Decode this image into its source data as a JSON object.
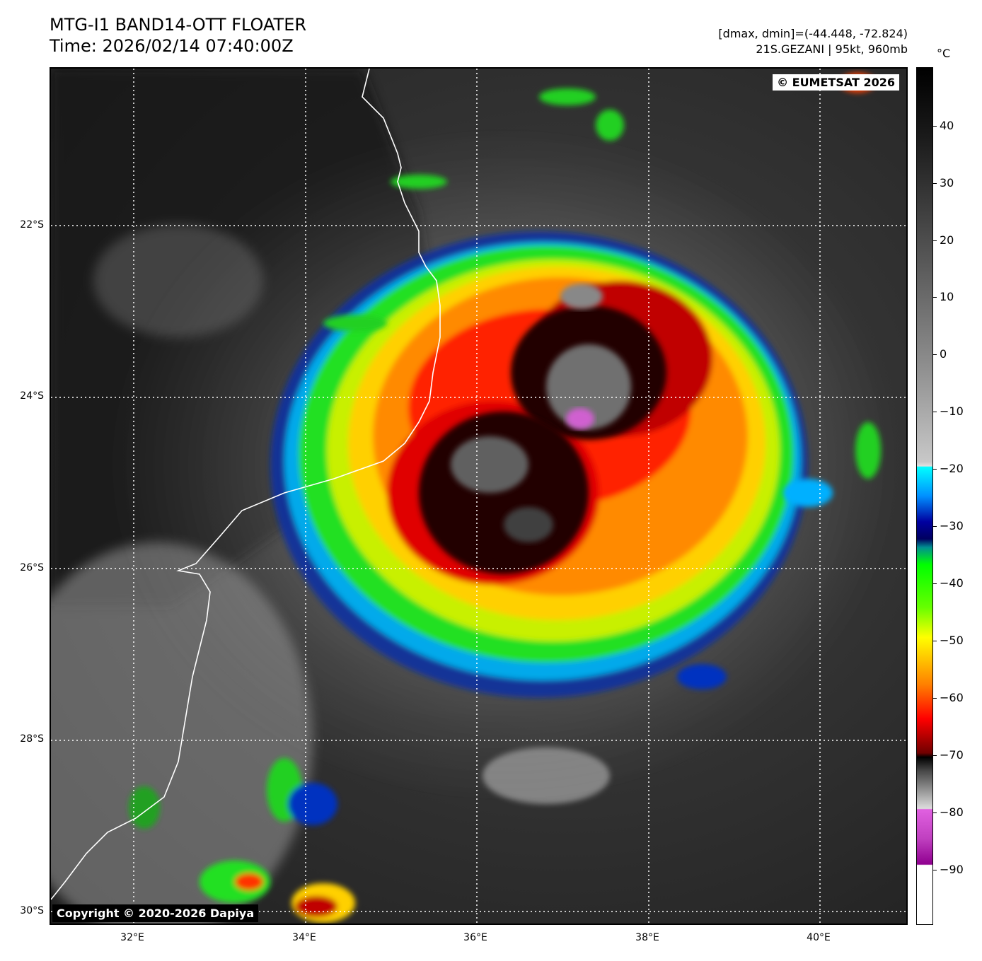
{
  "header": {
    "title_line1": "MTG-I1 BAND14-OTT FLOATER",
    "title_line2": "Time: 2026/02/14 07:40:00Z",
    "stats_line": "[dmax, dmin]=(-44.448, -72.824)",
    "storm_line": "21S.GEZANI | 95kt, 960mb"
  },
  "map": {
    "watermark_top": "© EUMETSAT 2026",
    "watermark_bottom": "Copyright © 2020-2026 Dapiya",
    "lat_labels": [
      "22°S",
      "24°S",
      "26°S",
      "28°S",
      "30°S"
    ],
    "lon_labels": [
      "32°E",
      "34°E",
      "36°E",
      "38°E",
      "40°E"
    ],
    "grid": "dotted white",
    "coastline_color": "#ffffff"
  },
  "colorbar": {
    "unit": "°C",
    "ticks": [
      "40",
      "30",
      "20",
      "10",
      "0",
      "−10",
      "−20",
      "−30",
      "−40",
      "−50",
      "−60",
      "−70",
      "−80",
      "−90"
    ],
    "colors": {
      "warm": "#000000",
      "mid_gray": "#c8c8c8",
      "cyan": "#00ffff",
      "blue": "#0000a0",
      "green": "#00ff00",
      "yellow": "#ffff00",
      "orange": "#ff8000",
      "red": "#ff0000",
      "dark_red": "#600000",
      "magenta": "#e060e0",
      "purple": "#900090"
    }
  }
}
